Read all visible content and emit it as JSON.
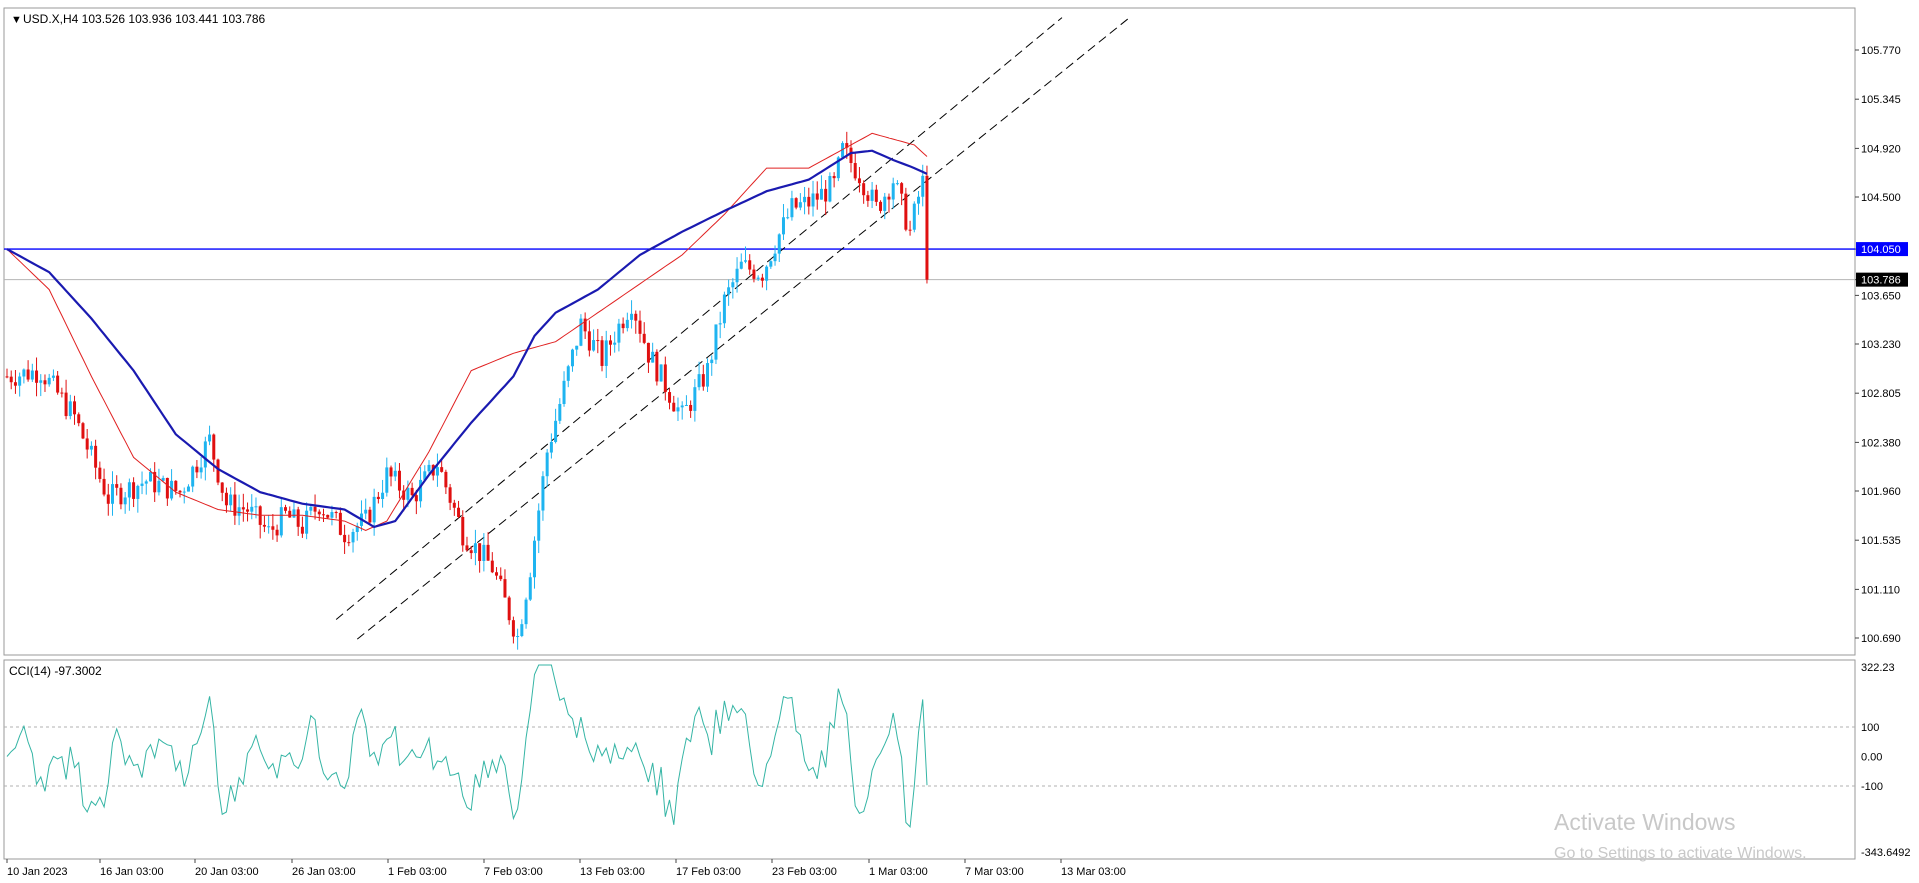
{
  "symbol_header": {
    "text": "USD.X,H4  103.526 103.936 103.441 103.786"
  },
  "price_axis": {
    "ticks": [
      105.77,
      105.345,
      104.92,
      104.5,
      104.05,
      103.786,
      103.65,
      103.23,
      102.805,
      102.38,
      101.96,
      101.535,
      101.11,
      100.69
    ],
    "tick_labels": [
      "105.770",
      "105.345",
      "104.920",
      "104.500",
      "104.050",
      "103.786",
      "103.650",
      "103.230",
      "102.805",
      "102.380",
      "101.960",
      "101.535",
      "101.110",
      "100.690"
    ]
  },
  "time_axis": {
    "labels": [
      "10 Jan 2023",
      "16 Jan 03:00",
      "20 Jan 03:00",
      "26 Jan 03:00",
      "1 Feb 03:00",
      "7 Feb 03:00",
      "13 Feb 03:00",
      "17 Feb 03:00",
      "23 Feb 03:00",
      "1 Mar 03:00",
      "7 Mar 03:00",
      "13 Mar 03:00"
    ]
  },
  "cci": {
    "header": "CCI(14) -97.3002",
    "levels": [
      "322.23",
      "100",
      "0.00",
      "-100",
      "-343.6492"
    ]
  },
  "watermark": {
    "line1": "Activate Windows",
    "line2": "Go to Settings to activate Windows."
  },
  "colors": {
    "bull_candle": "#1eb4f0",
    "bear_candle": "#e01010",
    "ma_fast": "#e02020",
    "ma_slow": "#1a1ab0",
    "hline_blue": "#0000ff",
    "current_price_line": "#b4b4b4",
    "trend_line": "#000000",
    "cci_line": "#35b5a5"
  },
  "chart_data": {
    "type": "candlestick",
    "title": "USD.X,H4",
    "x_ticks": [
      "10 Jan 2023",
      "16 Jan 03:00",
      "20 Jan 03:00",
      "26 Jan 03:00",
      "1 Feb 03:00",
      "7 Feb 03:00",
      "13 Feb 03:00",
      "17 Feb 03:00",
      "23 Feb 03:00",
      "1 Mar 03:00",
      "7 Mar 03:00",
      "13 Mar 03:00"
    ],
    "ylim": [
      100.6,
      106.1
    ],
    "close_trend_bars": [
      0,
      8,
      16,
      24,
      33,
      41,
      48,
      52,
      57,
      62,
      66,
      70,
      74,
      80,
      85,
      90,
      96,
      102,
      108,
      115,
      121,
      124,
      128,
      136,
      141,
      148,
      152,
      160,
      166,
      170,
      174,
      179,
      182,
      186,
      190,
      196,
      198,
      202,
      206,
      210,
      214,
      216,
      218
    ],
    "close_trend_values": [
      102.95,
      103.0,
      102.6,
      101.9,
      102.05,
      101.95,
      102.4,
      101.85,
      101.8,
      101.6,
      101.75,
      101.65,
      101.85,
      101.6,
      101.7,
      102.1,
      101.9,
      102.2,
      101.6,
      101.3,
      100.7,
      101.3,
      102.3,
      103.4,
      103.1,
      103.6,
      103.15,
      102.6,
      103.0,
      103.6,
      103.9,
      103.85,
      104.1,
      104.4,
      104.45,
      104.6,
      104.9,
      104.7,
      104.4,
      104.65,
      104.2,
      104.5,
      104.75
    ],
    "close_trend_values_note_less": true,
    "ma_fast_values_at_anchor_bars": {
      "bars": [
        0,
        10,
        20,
        30,
        40,
        50,
        60,
        70,
        80,
        85,
        90,
        100,
        110,
        120,
        130,
        140,
        150,
        160,
        170,
        180,
        190,
        200,
        205,
        210,
        215,
        218
      ],
      "values": [
        104.05,
        103.7,
        102.95,
        102.25,
        101.95,
        101.8,
        101.75,
        101.75,
        101.7,
        101.62,
        101.7,
        102.3,
        103.0,
        103.15,
        103.25,
        103.5,
        103.75,
        104.0,
        104.35,
        104.75,
        104.75,
        104.95,
        105.05,
        105.0,
        104.95,
        104.85
      ]
    },
    "ma_slow_values_at_anchor_bars": {
      "bars": [
        0,
        10,
        20,
        30,
        40,
        50,
        60,
        70,
        80,
        87,
        92,
        100,
        110,
        120,
        125,
        130,
        140,
        150,
        160,
        170,
        180,
        190,
        200,
        205,
        210,
        215,
        218
      ],
      "values": [
        104.05,
        103.85,
        103.45,
        103.0,
        102.45,
        102.15,
        101.95,
        101.85,
        101.8,
        101.65,
        101.7,
        102.1,
        102.55,
        102.95,
        103.3,
        103.5,
        103.7,
        104.0,
        104.2,
        104.38,
        104.55,
        104.65,
        104.88,
        104.9,
        104.82,
        104.75,
        104.7
      ]
    },
    "horizontal_line": 104.05,
    "current_price": 103.786,
    "channel_lines": [
      {
        "from": [
          78,
          100.85
        ],
        "to": [
          250,
          106.05
        ]
      },
      {
        "from": [
          83,
          100.68
        ],
        "to": [
          266,
          106.05
        ]
      }
    ],
    "cci_levels": [
      100,
      0,
      -100
    ],
    "cci_ylim": [
      -343.6492,
      322.23
    ]
  }
}
